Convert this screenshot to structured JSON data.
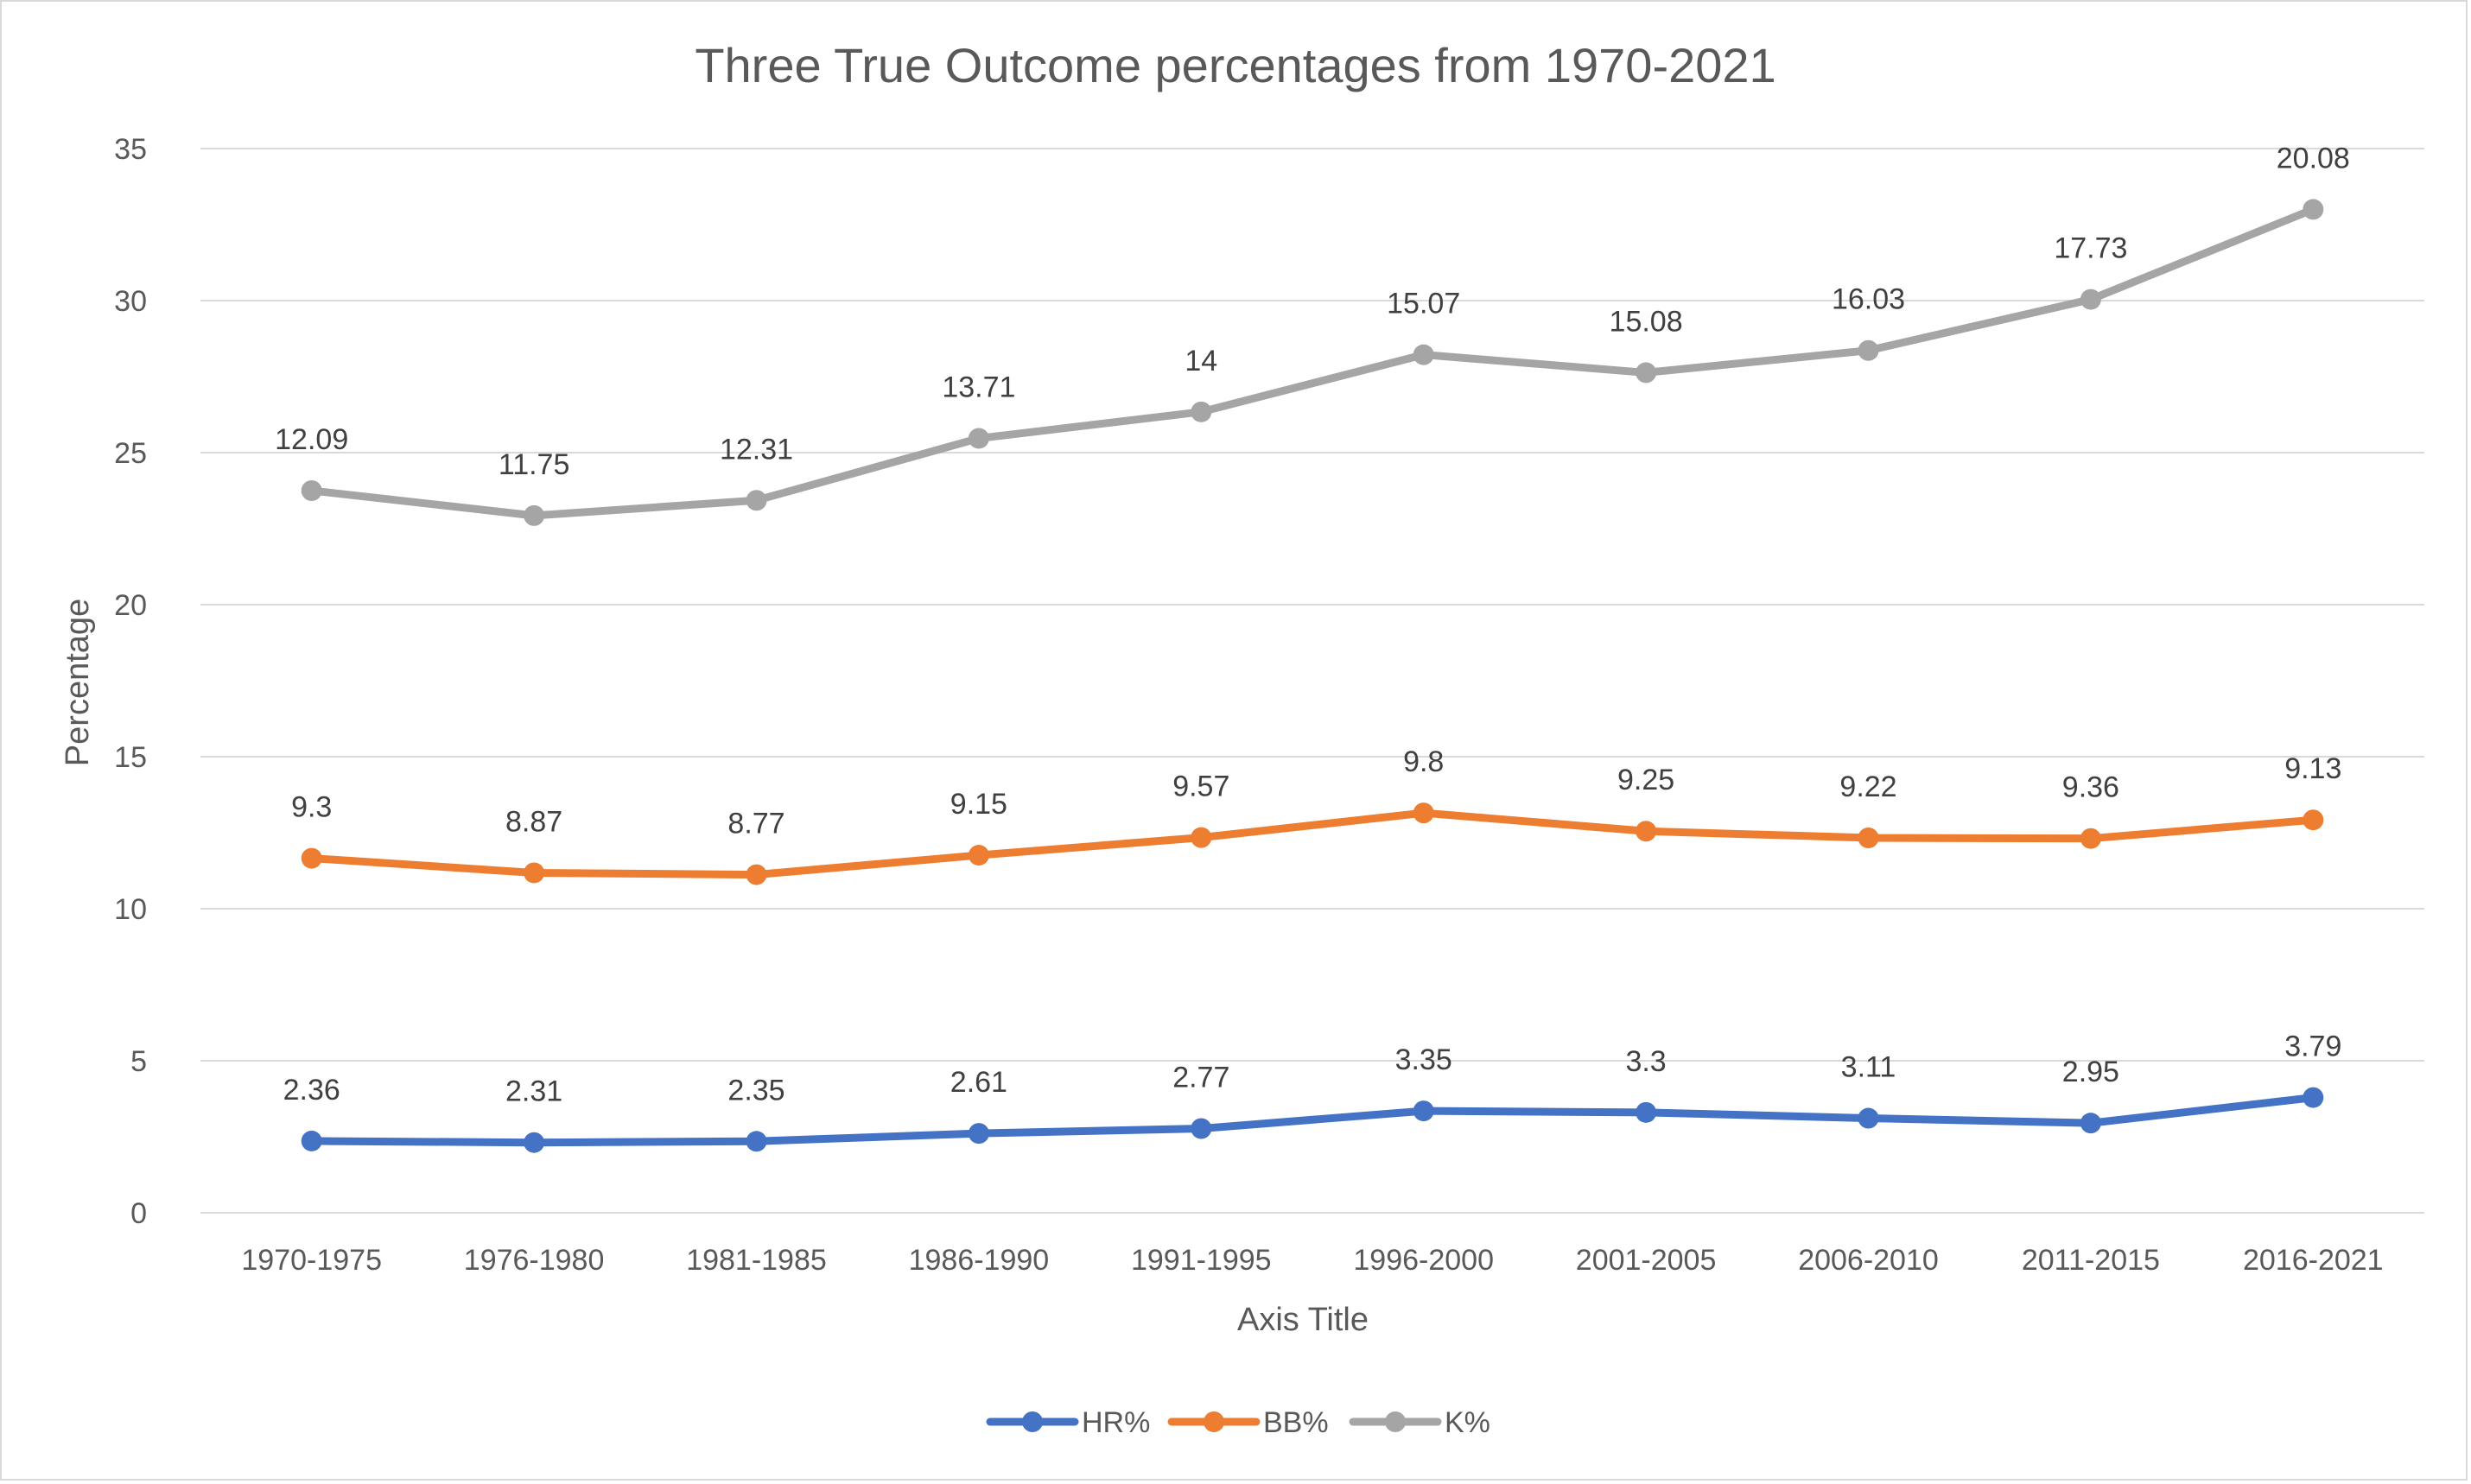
{
  "chart_data": {
    "type": "line",
    "title": "Three True Outcome percentages from 1970-2021",
    "xlabel": "Axis Title",
    "ylabel": "Percentage",
    "ylim": [
      0,
      35
    ],
    "yticks": [
      0,
      5,
      10,
      15,
      20,
      25,
      30,
      35
    ],
    "grid": true,
    "legend_position": "bottom",
    "categories": [
      "1970-1975",
      "1976-1980",
      "1981-1985",
      "1986-1990",
      "1991-1995",
      "1996-2000",
      "2001-2005",
      "2006-2010",
      "2011-2015",
      "2016-2021"
    ],
    "series": [
      {
        "name": "HR%",
        "color": "#4472c4",
        "values": [
          2.36,
          2.31,
          2.35,
          2.61,
          2.77,
          3.35,
          3.3,
          3.11,
          2.95,
          3.79
        ],
        "labels": [
          "2.36",
          "2.31",
          "2.35",
          "2.61",
          "2.77",
          "3.35",
          "3.3",
          "3.11",
          "2.95",
          "3.79"
        ]
      },
      {
        "name": "BB%",
        "color": "#ed7d31",
        "values": [
          11.66,
          11.18,
          11.12,
          11.76,
          12.34,
          13.15,
          12.55,
          12.33,
          12.31,
          12.92
        ],
        "labels": [
          "9.3",
          "8.87",
          "8.77",
          "9.15",
          "9.57",
          "9.8",
          "9.25",
          "9.22",
          "9.36",
          "9.13"
        ]
      },
      {
        "name": "K%",
        "color": "#a5a5a5",
        "values": [
          23.75,
          22.93,
          23.43,
          25.47,
          26.34,
          28.22,
          27.63,
          28.36,
          30.04,
          33.0
        ],
        "labels": [
          "12.09",
          "11.75",
          "12.31",
          "13.71",
          "14",
          "15.07",
          "15.08",
          "16.03",
          "17.73",
          "20.08"
        ]
      }
    ]
  }
}
